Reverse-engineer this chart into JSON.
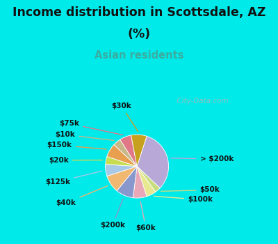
{
  "title_line1": "Income distribution in Scottsdale, AZ",
  "title_line2": "(%)",
  "subtitle": "Asian residents",
  "title_color": "#111111",
  "subtitle_color": "#3aada0",
  "background_top": "#00eaea",
  "background_chart": "#dff2e8",
  "watermark": "  City-Data.com",
  "labels": [
    "> $200k",
    "$50k",
    "$100k",
    "$60k",
    "$200k",
    "$40k",
    "$125k",
    "$20k",
    "$150k",
    "$10k",
    "$75k",
    "$30k"
  ],
  "values": [
    32,
    3,
    5,
    7,
    9,
    9,
    6,
    4,
    7,
    4,
    6,
    8
  ],
  "colors": [
    "#b8a8d8",
    "#c8dc80",
    "#e8e890",
    "#e8a8b8",
    "#8898cc",
    "#f0b870",
    "#a8c8e8",
    "#c8dc50",
    "#e8a050",
    "#c8b888",
    "#e07888",
    "#c8a020"
  ],
  "label_fontsize": 7.5,
  "start_angle": 72
}
